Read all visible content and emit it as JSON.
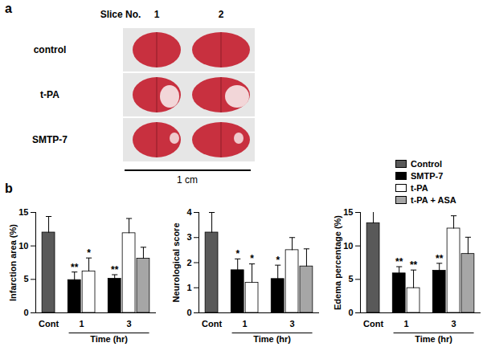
{
  "panel_a": {
    "label": "a",
    "column_header": "Slice No.",
    "slices": [
      "1",
      "2"
    ],
    "rows": [
      "control",
      "t-PA",
      "SMTP-7"
    ],
    "scale_bar": "1 cm"
  },
  "panel_b_label": "b",
  "chart_data": [
    {
      "type": "bar",
      "y_label": "Infarction area (%)",
      "x_label": "Time (hr)",
      "categories": [
        "Cont",
        "1",
        "3"
      ],
      "ylim": [
        0,
        15
      ],
      "yticks": [
        0,
        5,
        10,
        15
      ],
      "series": [
        {
          "name": "Control",
          "color": "#595959",
          "values": [
            12.0,
            null,
            null
          ],
          "errors": [
            2.4,
            null,
            null
          ],
          "significance": [
            null,
            null,
            null
          ]
        },
        {
          "name": "SMTP-7",
          "color": "#000000",
          "values": [
            null,
            4.9,
            5.1
          ],
          "errors": [
            null,
            1.2,
            0.6
          ],
          "significance": [
            null,
            "**",
            "**"
          ]
        },
        {
          "name": "t-PA",
          "color": "#ffffff",
          "values": [
            null,
            6.2,
            11.9
          ],
          "errors": [
            null,
            2.0,
            2.2
          ],
          "significance": [
            null,
            "*",
            null
          ]
        },
        {
          "name": "t-PA + ASA",
          "color": "#a6a6a6",
          "values": [
            null,
            null,
            8.1
          ],
          "errors": [
            null,
            null,
            1.7
          ],
          "significance": [
            null,
            null,
            null
          ]
        }
      ]
    },
    {
      "type": "bar",
      "y_label": "Neurological score",
      "x_label": "Time (hr)",
      "categories": [
        "Cont",
        "1",
        "3"
      ],
      "ylim": [
        0,
        4
      ],
      "yticks": [
        0,
        1,
        2,
        3,
        4
      ],
      "series": [
        {
          "name": "Control",
          "color": "#595959",
          "values": [
            3.2,
            null,
            null
          ],
          "errors": [
            0.8,
            null,
            null
          ],
          "significance": [
            null,
            null,
            null
          ]
        },
        {
          "name": "SMTP-7",
          "color": "#000000",
          "values": [
            null,
            1.7,
            1.35
          ],
          "errors": [
            null,
            0.45,
            0.55
          ],
          "significance": [
            null,
            "*",
            "*"
          ]
        },
        {
          "name": "t-PA",
          "color": "#ffffff",
          "values": [
            null,
            1.2,
            2.5
          ],
          "errors": [
            null,
            0.75,
            0.5
          ],
          "significance": [
            null,
            "*",
            null
          ]
        },
        {
          "name": "t-PA + ASA",
          "color": "#a6a6a6",
          "values": [
            null,
            null,
            1.85
          ],
          "errors": [
            null,
            null,
            0.7
          ],
          "significance": [
            null,
            null,
            null
          ]
        }
      ]
    },
    {
      "type": "bar",
      "y_label": "Edema percentage (%)",
      "x_label": "Time (hr)",
      "categories": [
        "Cont",
        "1",
        "3"
      ],
      "ylim": [
        0,
        15
      ],
      "yticks": [
        0,
        5,
        10,
        15
      ],
      "series": [
        {
          "name": "Control",
          "color": "#595959",
          "values": [
            13.4,
            null,
            null
          ],
          "errors": [
            1.8,
            null,
            null
          ],
          "significance": [
            null,
            null,
            null
          ]
        },
        {
          "name": "SMTP-7",
          "color": "#000000",
          "values": [
            null,
            5.9,
            6.3
          ],
          "errors": [
            null,
            1.0,
            1.1
          ],
          "significance": [
            null,
            "**",
            "**"
          ]
        },
        {
          "name": "t-PA",
          "color": "#ffffff",
          "values": [
            null,
            3.7,
            12.6
          ],
          "errors": [
            null,
            2.7,
            1.9
          ],
          "significance": [
            null,
            "**",
            null
          ]
        },
        {
          "name": "t-PA + ASA",
          "color": "#a6a6a6",
          "values": [
            null,
            null,
            8.8
          ],
          "errors": [
            null,
            null,
            2.5
          ],
          "significance": [
            null,
            null,
            null
          ]
        }
      ]
    }
  ]
}
